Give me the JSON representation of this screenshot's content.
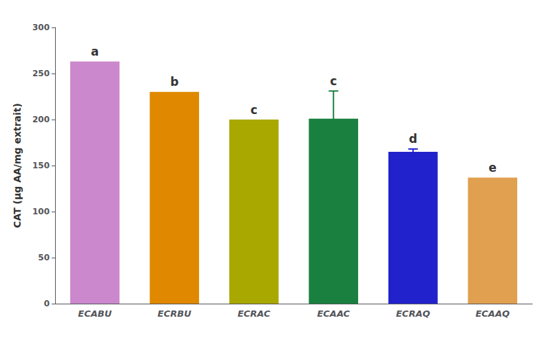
{
  "chart_data": {
    "type": "bar",
    "categories": [
      "ECABU",
      "ECRBU",
      "ECRAC",
      "ECAAC",
      "ECRAQ",
      "ECAAQ"
    ],
    "values": [
      263,
      230,
      200,
      201,
      165,
      137
    ],
    "errors": [
      0,
      0,
      0,
      30,
      3,
      0
    ],
    "annotations": [
      "a",
      "b",
      "c",
      "c",
      "d",
      "e"
    ],
    "colors": [
      "#cc88cc",
      "#e08800",
      "#a8a800",
      "#1a8040",
      "#2222cc",
      "#e0a050"
    ],
    "ylabel": "CAT (µg AA/mg extrait)",
    "ylim": [
      0,
      300
    ],
    "yticks": [
      0,
      50,
      100,
      150,
      200,
      250,
      300
    ],
    "grid": false
  }
}
